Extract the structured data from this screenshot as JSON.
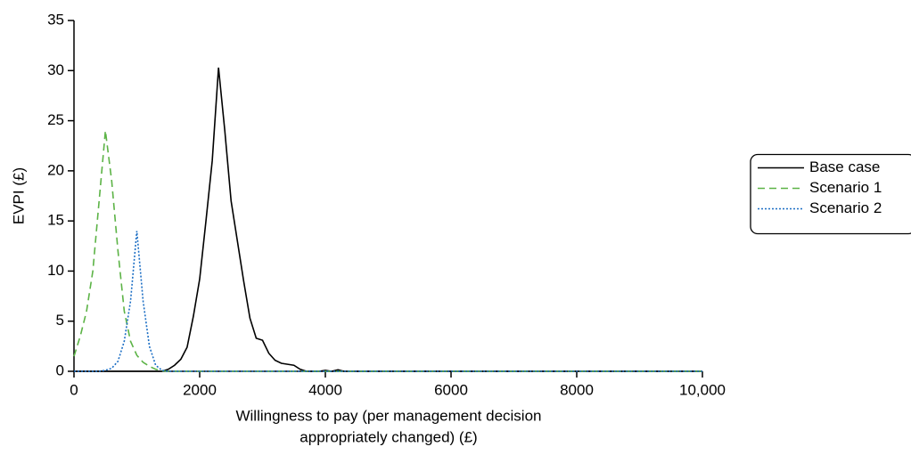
{
  "chart_data": {
    "type": "line",
    "ylabel": "EVPI (£)",
    "xlabel": [
      "Willingness to pay (per management decision",
      "appropriately changed) (£)"
    ],
    "xlim": [
      0,
      10000
    ],
    "ylim": [
      0,
      35
    ],
    "xticks": [
      0,
      2000,
      4000,
      6000,
      8000,
      {
        "value": 10000,
        "label": "10,000"
      }
    ],
    "yticks": [
      0,
      5,
      10,
      15,
      20,
      25,
      30,
      35
    ],
    "legend": "right",
    "series": [
      {
        "name": "Base case",
        "color": "#000000",
        "dash": "solid",
        "x": [
          0,
          1400,
          1500,
          1600,
          1700,
          1800,
          1900,
          2000,
          2100,
          2200,
          2300,
          2400,
          2500,
          2600,
          2700,
          2800,
          2900,
          3000,
          3100,
          3200,
          3300,
          3400,
          3500,
          3600,
          3700,
          3900,
          4000,
          4100,
          4200,
          4300,
          10000
        ],
        "values": [
          0,
          0,
          0.2,
          0.6,
          1.2,
          2.4,
          5.5,
          9.2,
          15,
          21,
          30.3,
          24,
          17,
          13,
          9,
          5.3,
          3.3,
          3.1,
          1.8,
          1.1,
          0.8,
          0.7,
          0.6,
          0.2,
          0,
          0,
          0.1,
          0,
          0.15,
          0,
          0
        ]
      },
      {
        "name": "Scenario 1",
        "color": "#5cb346",
        "dash": "dashed",
        "x": [
          0,
          100,
          200,
          300,
          400,
          500,
          600,
          700,
          800,
          900,
          1000,
          1100,
          1200,
          1300,
          1400,
          1500,
          10000
        ],
        "values": [
          1.5,
          3.5,
          6,
          10,
          17,
          24,
          19,
          12,
          6,
          3,
          1.6,
          0.9,
          0.5,
          0.2,
          0.05,
          0,
          0
        ]
      },
      {
        "name": "Scenario 2",
        "color": "#1a6dc4",
        "dash": "dotted",
        "x": [
          0,
          400,
          500,
          600,
          700,
          800,
          900,
          1000,
          1100,
          1200,
          1300,
          1400,
          1500,
          10000
        ],
        "values": [
          0,
          0,
          0.1,
          0.3,
          1,
          3,
          7,
          14,
          7,
          2.5,
          0.6,
          0.1,
          0,
          0
        ]
      }
    ]
  }
}
